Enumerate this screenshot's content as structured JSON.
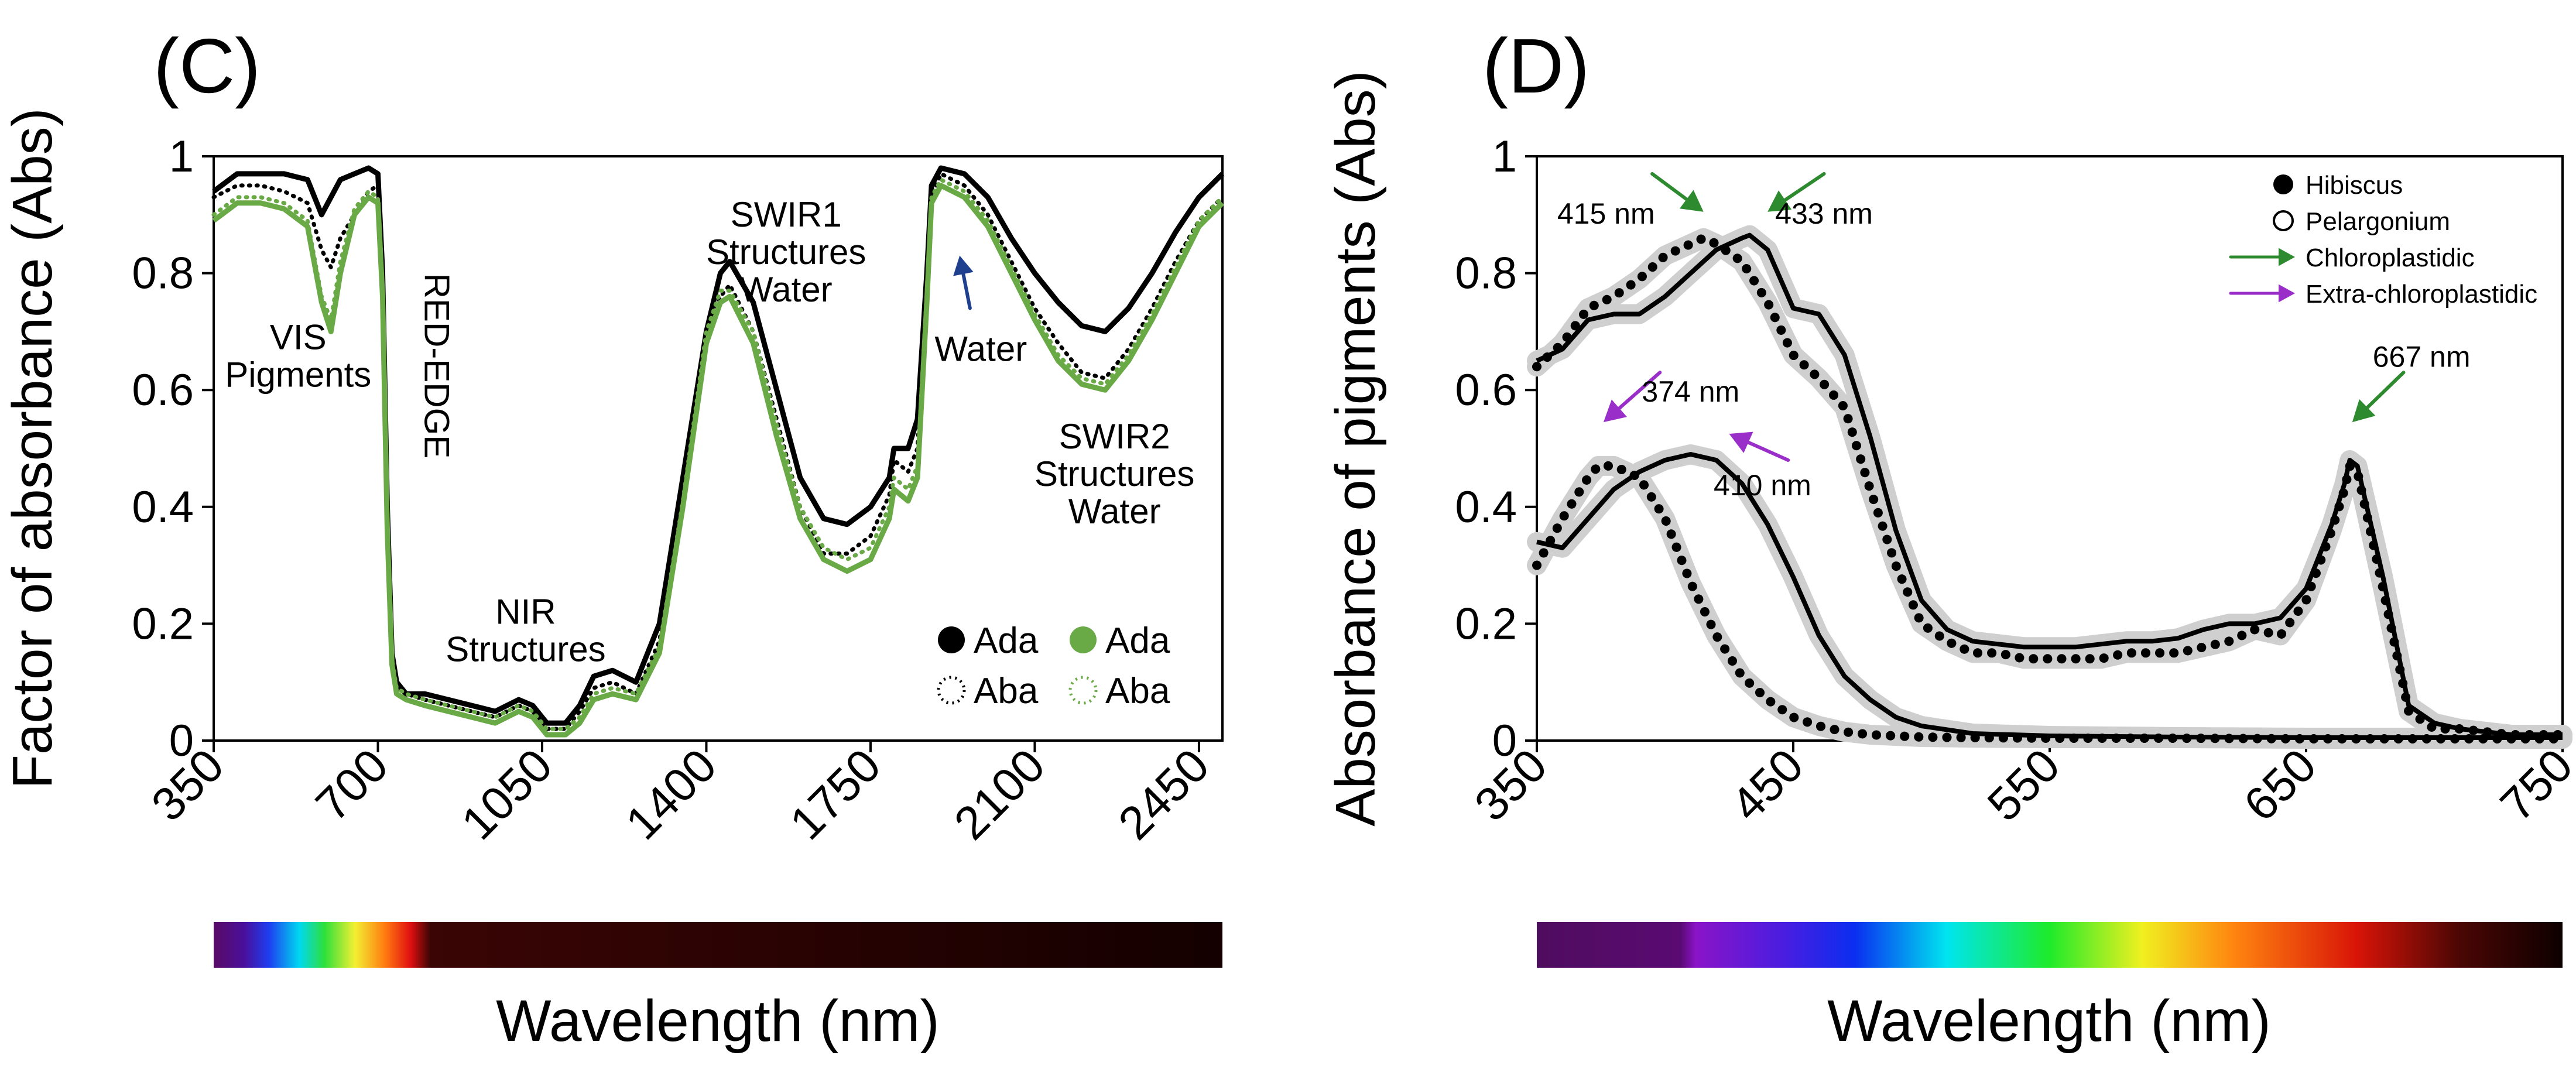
{
  "chart_data": [
    {
      "panel": "(C)",
      "type": "line",
      "xlabel": "Wavelength (nm)",
      "ylabel": "Factor of absorbance (Abs)",
      "xlim": [
        350,
        2500
      ],
      "ylim": [
        0,
        1
      ],
      "x_ticks": [
        "350",
        "700",
        "1050",
        "1400",
        "1750",
        "2100",
        "2450"
      ],
      "y_ticks": [
        "0",
        "0.2",
        "0.4",
        "0.6",
        "0.8",
        "1"
      ],
      "grid": false,
      "legend": {
        "position": "bottom-right",
        "entries": [
          {
            "label": "Ada",
            "marker": "filled-circle",
            "color": "#000000"
          },
          {
            "label": "Aba",
            "marker": "dotted-circle",
            "color": "#000000"
          },
          {
            "label": "Ada",
            "marker": "filled-circle",
            "color": "#6aaa46"
          },
          {
            "label": "Aba",
            "marker": "dotted-circle",
            "color": "#6aaa46"
          }
        ]
      },
      "annotations": [
        {
          "lines": [
            "VIS",
            "Pigments"
          ],
          "x": 530,
          "y": 0.67
        },
        {
          "lines": [
            "RED-EDGE"
          ],
          "x": 800,
          "y": 0.8,
          "rotated": true
        },
        {
          "lines": [
            "NIR",
            "Structures"
          ],
          "x": 1015,
          "y": 0.2
        },
        {
          "lines": [
            "SWIR1",
            "Structures",
            "Water"
          ],
          "x": 1570,
          "y": 0.88
        },
        {
          "lines": [
            "Water"
          ],
          "x": 1985,
          "y": 0.65
        },
        {
          "lines": [
            "SWIR2",
            "Structures",
            "Water"
          ],
          "x": 2270,
          "y": 0.5
        }
      ],
      "arrows": [
        {
          "label": "Water",
          "from": [
            1962,
            0.74
          ],
          "to": [
            1940,
            0.83
          ],
          "color": "#1f3f8f"
        }
      ],
      "x": [
        350,
        400,
        450,
        500,
        550,
        580,
        600,
        620,
        650,
        680,
        700,
        710,
        720,
        730,
        740,
        760,
        800,
        900,
        950,
        1000,
        1030,
        1060,
        1100,
        1130,
        1160,
        1200,
        1250,
        1300,
        1350,
        1400,
        1430,
        1450,
        1500,
        1550,
        1600,
        1650,
        1700,
        1750,
        1790,
        1800,
        1830,
        1850,
        1870,
        1880,
        1900,
        1950,
        2000,
        2050,
        2100,
        2150,
        2200,
        2250,
        2300,
        2350,
        2400,
        2450,
        2500
      ],
      "series": [
        {
          "name": "Ada",
          "color": "#000000",
          "style": "solid",
          "values": [
            0.94,
            0.97,
            0.97,
            0.97,
            0.96,
            0.9,
            0.93,
            0.96,
            0.97,
            0.98,
            0.97,
            0.8,
            0.4,
            0.15,
            0.1,
            0.08,
            0.08,
            0.06,
            0.05,
            0.07,
            0.06,
            0.03,
            0.03,
            0.06,
            0.11,
            0.12,
            0.1,
            0.2,
            0.45,
            0.7,
            0.8,
            0.82,
            0.75,
            0.6,
            0.45,
            0.38,
            0.37,
            0.4,
            0.45,
            0.5,
            0.5,
            0.55,
            0.8,
            0.95,
            0.98,
            0.97,
            0.93,
            0.86,
            0.8,
            0.75,
            0.71,
            0.7,
            0.74,
            0.8,
            0.87,
            0.93,
            0.97
          ]
        },
        {
          "name": "Aba",
          "color": "#000000",
          "style": "dotted",
          "values": [
            0.93,
            0.95,
            0.95,
            0.94,
            0.92,
            0.84,
            0.81,
            0.86,
            0.9,
            0.94,
            0.95,
            0.78,
            0.38,
            0.14,
            0.09,
            0.08,
            0.07,
            0.05,
            0.04,
            0.06,
            0.05,
            0.02,
            0.02,
            0.05,
            0.09,
            0.1,
            0.08,
            0.17,
            0.42,
            0.68,
            0.76,
            0.78,
            0.7,
            0.55,
            0.4,
            0.32,
            0.32,
            0.35,
            0.42,
            0.48,
            0.46,
            0.5,
            0.78,
            0.93,
            0.97,
            0.95,
            0.9,
            0.82,
            0.74,
            0.68,
            0.63,
            0.62,
            0.67,
            0.74,
            0.82,
            0.89,
            0.93
          ]
        },
        {
          "name": "Ada",
          "color": "#6aaa46",
          "style": "solid",
          "values": [
            0.89,
            0.92,
            0.92,
            0.91,
            0.88,
            0.75,
            0.7,
            0.8,
            0.9,
            0.93,
            0.92,
            0.76,
            0.36,
            0.13,
            0.08,
            0.07,
            0.06,
            0.04,
            0.03,
            0.05,
            0.04,
            0.01,
            0.01,
            0.03,
            0.07,
            0.08,
            0.07,
            0.15,
            0.4,
            0.68,
            0.75,
            0.76,
            0.68,
            0.52,
            0.38,
            0.31,
            0.29,
            0.31,
            0.38,
            0.43,
            0.41,
            0.45,
            0.75,
            0.92,
            0.95,
            0.93,
            0.88,
            0.8,
            0.72,
            0.65,
            0.61,
            0.6,
            0.65,
            0.72,
            0.8,
            0.88,
            0.92
          ]
        },
        {
          "name": "Aba",
          "color": "#6aaa46",
          "style": "dotted",
          "values": [
            0.9,
            0.93,
            0.93,
            0.92,
            0.89,
            0.76,
            0.72,
            0.82,
            0.91,
            0.94,
            0.93,
            0.77,
            0.37,
            0.14,
            0.09,
            0.08,
            0.07,
            0.05,
            0.04,
            0.06,
            0.05,
            0.02,
            0.02,
            0.04,
            0.08,
            0.09,
            0.08,
            0.16,
            0.41,
            0.7,
            0.77,
            0.77,
            0.7,
            0.54,
            0.4,
            0.33,
            0.31,
            0.33,
            0.4,
            0.45,
            0.43,
            0.47,
            0.77,
            0.93,
            0.96,
            0.94,
            0.89,
            0.81,
            0.73,
            0.66,
            0.62,
            0.61,
            0.66,
            0.73,
            0.81,
            0.89,
            0.93
          ]
        }
      ]
    },
    {
      "panel": "(D)",
      "type": "line",
      "xlabel": "Wavelength (nm)",
      "ylabel": "Absorbance of pigments (Abs)",
      "xlim": [
        350,
        750
      ],
      "ylim": [
        0,
        1
      ],
      "x_ticks": [
        "350",
        "450",
        "550",
        "650",
        "750"
      ],
      "y_ticks": [
        "0",
        "0.2",
        "0.4",
        "0.6",
        "0.8",
        "1"
      ],
      "grid": false,
      "legend": {
        "position": "top-right",
        "entries": [
          {
            "label": "Hibiscus",
            "marker": "filled-circle"
          },
          {
            "label": "Pelargonium",
            "marker": "open-circle"
          },
          {
            "label": "Chloroplastidic",
            "marker": "arrow",
            "color": "#2e8a2e"
          },
          {
            "label": "Extra-chloroplastidic",
            "marker": "arrow",
            "color": "#9a2ec8"
          }
        ]
      },
      "annotations": [
        {
          "label": "415 nm",
          "x": 377,
          "y": 0.885,
          "arrow_from": [
            395,
            0.97
          ],
          "arrow_to": [
            415,
            0.905
          ],
          "color": "#2e8a2e"
        },
        {
          "label": "433 nm",
          "x": 462,
          "y": 0.885,
          "arrow_from": [
            462,
            0.97
          ],
          "arrow_to": [
            440,
            0.905
          ],
          "color": "#2e8a2e"
        },
        {
          "label": "374 nm",
          "x": 410,
          "y": 0.58,
          "arrow_from": [
            398,
            0.63
          ],
          "arrow_to": [
            376,
            0.545
          ],
          "color": "#9a2ec8"
        },
        {
          "label": "410 nm",
          "x": 438,
          "y": 0.42,
          "arrow_from": [
            448,
            0.48
          ],
          "arrow_to": [
            425,
            0.525
          ],
          "color": "#9a2ec8"
        },
        {
          "label": "667 nm",
          "x": 695,
          "y": 0.64,
          "arrow_from": [
            688,
            0.63
          ],
          "arrow_to": [
            668,
            0.545
          ],
          "color": "#2e8a2e"
        }
      ],
      "series": [
        {
          "name": "Hibiscus chloroplastidic",
          "style": "solid",
          "x": [
            350,
            360,
            370,
            380,
            390,
            400,
            410,
            420,
            430,
            433,
            440,
            450,
            460,
            470,
            480,
            490,
            500,
            510,
            520,
            530,
            540,
            550,
            560,
            570,
            580,
            590,
            600,
            610,
            620,
            630,
            640,
            650,
            660,
            665,
            667,
            670,
            680,
            690,
            700,
            710,
            720,
            730,
            740,
            750
          ],
          "values": [
            0.65,
            0.67,
            0.72,
            0.73,
            0.73,
            0.76,
            0.8,
            0.84,
            0.86,
            0.865,
            0.84,
            0.74,
            0.73,
            0.66,
            0.52,
            0.36,
            0.24,
            0.19,
            0.17,
            0.165,
            0.16,
            0.16,
            0.16,
            0.165,
            0.17,
            0.17,
            0.175,
            0.19,
            0.2,
            0.2,
            0.21,
            0.26,
            0.37,
            0.44,
            0.48,
            0.47,
            0.28,
            0.06,
            0.03,
            0.02,
            0.015,
            0.01,
            0.01,
            0.01
          ]
        },
        {
          "name": "Pelargonium chloroplastidic",
          "style": "dotted",
          "x": [
            350,
            360,
            370,
            380,
            390,
            400,
            410,
            415,
            420,
            430,
            440,
            450,
            460,
            470,
            480,
            490,
            500,
            510,
            520,
            530,
            540,
            550,
            560,
            570,
            580,
            590,
            600,
            610,
            620,
            630,
            640,
            650,
            660,
            665,
            667,
            670,
            680,
            690,
            700,
            710,
            720,
            730,
            740,
            750
          ],
          "values": [
            0.64,
            0.68,
            0.74,
            0.76,
            0.79,
            0.83,
            0.85,
            0.86,
            0.85,
            0.82,
            0.75,
            0.66,
            0.62,
            0.57,
            0.43,
            0.3,
            0.2,
            0.17,
            0.15,
            0.15,
            0.14,
            0.14,
            0.14,
            0.14,
            0.15,
            0.15,
            0.15,
            0.16,
            0.17,
            0.19,
            0.18,
            0.24,
            0.36,
            0.43,
            0.47,
            0.46,
            0.26,
            0.05,
            0.02,
            0.02,
            0.015,
            0.01,
            0.01,
            0.01
          ]
        },
        {
          "name": "Hibiscus extra-chloroplastidic",
          "style": "solid",
          "x": [
            350,
            360,
            370,
            380,
            390,
            400,
            410,
            420,
            430,
            440,
            450,
            460,
            470,
            480,
            490,
            500,
            520,
            550,
            600,
            650,
            700,
            750
          ],
          "values": [
            0.34,
            0.33,
            0.38,
            0.43,
            0.46,
            0.48,
            0.49,
            0.48,
            0.44,
            0.37,
            0.28,
            0.18,
            0.11,
            0.07,
            0.04,
            0.025,
            0.012,
            0.008,
            0.006,
            0.005,
            0.005,
            0.005
          ]
        },
        {
          "name": "Pelargonium extra-chloroplastidic",
          "style": "dotted",
          "x": [
            350,
            360,
            370,
            374,
            380,
            390,
            400,
            410,
            420,
            430,
            440,
            450,
            460,
            470,
            480,
            490,
            500,
            520,
            550,
            600,
            650,
            700,
            750
          ],
          "values": [
            0.3,
            0.38,
            0.45,
            0.47,
            0.47,
            0.45,
            0.38,
            0.27,
            0.18,
            0.11,
            0.07,
            0.04,
            0.025,
            0.015,
            0.01,
            0.008,
            0.006,
            0.005,
            0.004,
            0.004,
            0.003,
            0.003,
            0.003
          ]
        }
      ]
    }
  ],
  "panels": [
    {
      "letter": "(C)",
      "wavelength_label": "Wavelength (nm)"
    },
    {
      "letter": "(D)",
      "wavelength_label": "Wavelength (nm)"
    }
  ]
}
